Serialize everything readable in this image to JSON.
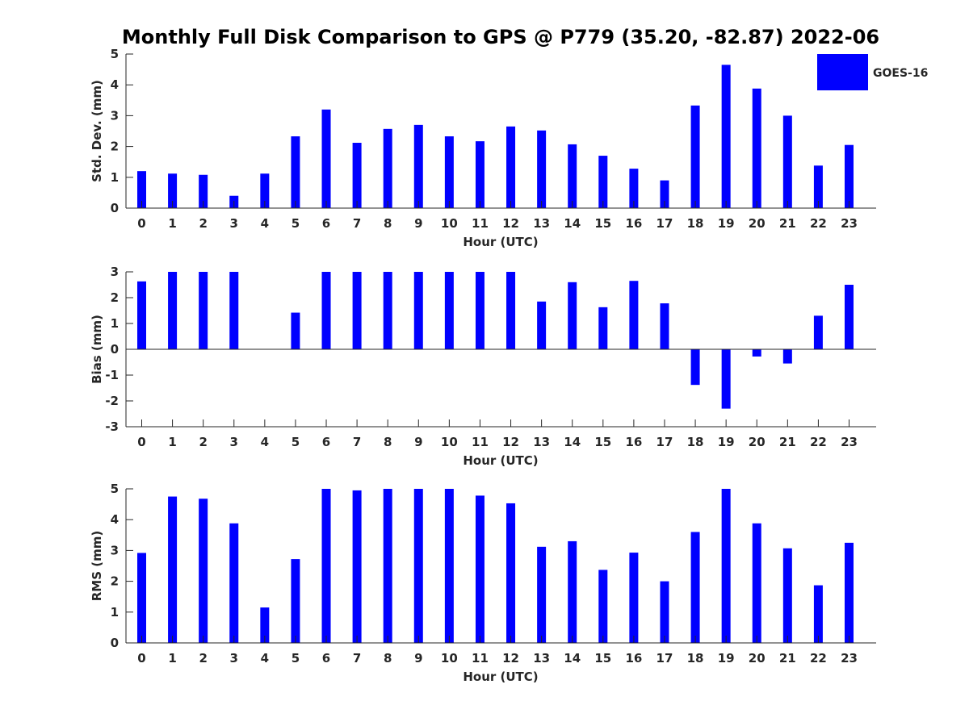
{
  "title": "Monthly Full Disk Comparison to GPS @ P779 (35.20, -82.87) 2022-06",
  "legend": {
    "label": "GOES-16",
    "placement": "top-right"
  },
  "colors": {
    "bar": "#0000ff",
    "axis": "#262626",
    "background": "#ffffff"
  },
  "chart_data": [
    {
      "type": "bar",
      "title": "Monthly Full Disk Comparison to GPS @ P779 (35.20, -82.87) 2022-06",
      "xlabel": "Hour (UTC)",
      "ylabel": "Std. Dev. (mm)",
      "ylim": [
        0,
        5
      ],
      "yticks": [
        0,
        1,
        2,
        3,
        4,
        5
      ],
      "categories": [
        "0",
        "1",
        "2",
        "3",
        "4",
        "5",
        "6",
        "7",
        "8",
        "9",
        "10",
        "11",
        "12",
        "13",
        "14",
        "15",
        "16",
        "17",
        "18",
        "19",
        "20",
        "21",
        "22",
        "23"
      ],
      "series": [
        {
          "name": "GOES-16",
          "values": [
            1.2,
            1.12,
            1.08,
            0.4,
            1.12,
            2.33,
            3.2,
            2.12,
            2.57,
            2.7,
            2.33,
            2.17,
            2.65,
            2.52,
            2.07,
            1.7,
            1.28,
            0.9,
            3.33,
            4.65,
            3.88,
            3.0,
            1.38,
            2.05
          ]
        }
      ],
      "grid": false,
      "legend": "top-right"
    },
    {
      "type": "bar",
      "xlabel": "Hour (UTC)",
      "ylabel": "Bias (mm)",
      "ylim": [
        -3,
        3
      ],
      "yticks": [
        -3,
        -2,
        -1,
        0,
        1,
        2,
        3
      ],
      "categories": [
        "0",
        "1",
        "2",
        "3",
        "4",
        "5",
        "6",
        "7",
        "8",
        "9",
        "10",
        "11",
        "12",
        "13",
        "14",
        "15",
        "16",
        "17",
        "18",
        "19",
        "20",
        "21",
        "22",
        "23"
      ],
      "series": [
        {
          "name": "GOES-16",
          "values": [
            2.63,
            3.0,
            3.0,
            3.0,
            0.0,
            1.42,
            3.0,
            3.0,
            3.0,
            3.0,
            3.0,
            3.0,
            3.0,
            1.85,
            2.6,
            1.63,
            2.65,
            1.78,
            -1.38,
            -2.3,
            -0.28,
            -0.55,
            1.3,
            2.5
          ]
        }
      ],
      "grid": false
    },
    {
      "type": "bar",
      "xlabel": "Hour (UTC)",
      "ylabel": "RMS (mm)",
      "ylim": [
        0,
        5
      ],
      "yticks": [
        0,
        1,
        2,
        3,
        4,
        5
      ],
      "categories": [
        "0",
        "1",
        "2",
        "3",
        "4",
        "5",
        "6",
        "7",
        "8",
        "9",
        "10",
        "11",
        "12",
        "13",
        "14",
        "15",
        "16",
        "17",
        "18",
        "19",
        "20",
        "21",
        "22",
        "23"
      ],
      "series": [
        {
          "name": "GOES-16",
          "values": [
            2.92,
            4.75,
            4.68,
            3.88,
            1.15,
            2.72,
            5.0,
            4.95,
            5.0,
            5.0,
            5.0,
            4.78,
            4.53,
            3.12,
            3.3,
            2.37,
            2.93,
            2.0,
            3.6,
            5.0,
            3.88,
            3.07,
            1.87,
            3.25
          ]
        }
      ],
      "grid": false
    }
  ]
}
